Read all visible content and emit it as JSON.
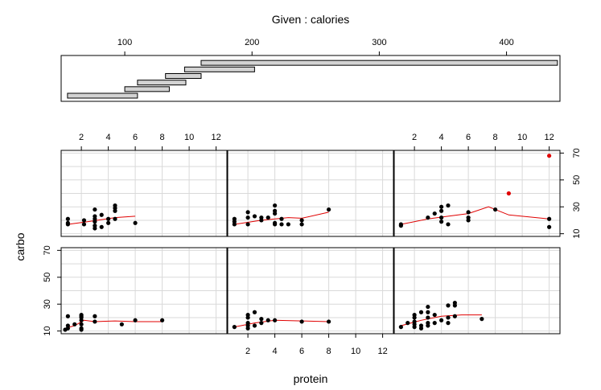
{
  "chart_data": {
    "type": "scatter",
    "title": "Given : calories",
    "xlabel": "protein",
    "ylabel": "carbo",
    "given": {
      "variable": "calories",
      "xlim": [
        50,
        442
      ],
      "ticks": [
        100,
        200,
        300,
        400
      ],
      "intervals": [
        [
          55,
          110
        ],
        [
          100,
          135
        ],
        [
          110,
          148
        ],
        [
          132,
          160
        ],
        [
          147,
          202
        ],
        [
          160,
          440
        ]
      ]
    },
    "xlim": [
      0.5,
      12.8
    ],
    "ylim": [
      8,
      72
    ],
    "xticks": [
      2,
      4,
      6,
      8,
      10,
      12
    ],
    "yticks": [
      10,
      30,
      50,
      70
    ],
    "grid": true,
    "smoother_color": "#e00000",
    "highlight_color": "#e00000",
    "panels": [
      {
        "row": "top",
        "col": 1,
        "points": [
          [
            1,
            18
          ],
          [
            1,
            21
          ],
          [
            1,
            17
          ],
          [
            2.2,
            17
          ],
          [
            2.2,
            20
          ],
          [
            3,
            21
          ],
          [
            3,
            19
          ],
          [
            3,
            23
          ],
          [
            3,
            28
          ],
          [
            3,
            16
          ],
          [
            3,
            14
          ],
          [
            3.5,
            24
          ],
          [
            3.5,
            15
          ],
          [
            4,
            21
          ],
          [
            4,
            18
          ],
          [
            4.5,
            31
          ],
          [
            4.5,
            27
          ],
          [
            4.5,
            21
          ],
          [
            4.5,
            29
          ],
          [
            6,
            18
          ]
        ],
        "highlight": [],
        "smooth": [
          [
            1,
            17
          ],
          [
            2.5,
            19
          ],
          [
            3.5,
            20.5
          ],
          [
            4.5,
            22
          ],
          [
            6,
            23
          ]
        ]
      },
      {
        "row": "top",
        "col": 2,
        "points": [
          [
            1,
            19
          ],
          [
            1,
            17
          ],
          [
            1,
            21
          ],
          [
            2,
            17
          ],
          [
            2,
            22
          ],
          [
            2,
            26
          ],
          [
            2.5,
            23
          ],
          [
            3,
            20
          ],
          [
            3,
            22
          ],
          [
            3.5,
            22
          ],
          [
            4,
            18
          ],
          [
            4,
            17
          ],
          [
            4,
            31
          ],
          [
            4,
            25
          ],
          [
            4,
            27
          ],
          [
            4.5,
            17
          ],
          [
            4.5,
            21
          ],
          [
            5,
            17
          ],
          [
            6,
            17
          ],
          [
            6,
            20
          ],
          [
            8,
            28
          ]
        ],
        "highlight": [],
        "smooth": [
          [
            1,
            17
          ],
          [
            3,
            20
          ],
          [
            5,
            22
          ],
          [
            6,
            21.5
          ],
          [
            8,
            26
          ]
        ]
      },
      {
        "row": "top",
        "col": 3,
        "points": [
          [
            1,
            17
          ],
          [
            1,
            16
          ],
          [
            3,
            22
          ],
          [
            3.5,
            25
          ],
          [
            4,
            27
          ],
          [
            4,
            22
          ],
          [
            4,
            30
          ],
          [
            4,
            19
          ],
          [
            4.5,
            17
          ],
          [
            4.5,
            31
          ],
          [
            6,
            22
          ],
          [
            6,
            26
          ],
          [
            6,
            20
          ],
          [
            8,
            28
          ],
          [
            12,
            21
          ],
          [
            12,
            15
          ]
        ],
        "highlight": [
          [
            9,
            40
          ],
          [
            12,
            68
          ]
        ],
        "smooth": [
          [
            1,
            17
          ],
          [
            3,
            21
          ],
          [
            4.5,
            23
          ],
          [
            6,
            25
          ],
          [
            7.5,
            30
          ],
          [
            9,
            24
          ],
          [
            12,
            21
          ]
        ]
      },
      {
        "row": "bottom",
        "col": 1,
        "points": [
          [
            0.8,
            11
          ],
          [
            1,
            21
          ],
          [
            1,
            12
          ],
          [
            1,
            14
          ],
          [
            1.5,
            15
          ],
          [
            2,
            15
          ],
          [
            2,
            12
          ],
          [
            2,
            11
          ],
          [
            2,
            20
          ],
          [
            2,
            21
          ],
          [
            2,
            22
          ],
          [
            2,
            18
          ],
          [
            3,
            21
          ],
          [
            3,
            17
          ],
          [
            5,
            15
          ],
          [
            6,
            18
          ],
          [
            8,
            18
          ]
        ],
        "highlight": [],
        "smooth": [
          [
            0.8,
            12
          ],
          [
            1.5,
            14
          ],
          [
            2.2,
            18
          ],
          [
            3,
            17
          ],
          [
            4.5,
            17.5
          ],
          [
            6,
            17
          ],
          [
            8,
            17
          ]
        ]
      },
      {
        "row": "bottom",
        "col": 2,
        "points": [
          [
            1,
            13
          ],
          [
            2,
            12
          ],
          [
            2,
            14
          ],
          [
            2,
            16
          ],
          [
            2,
            20
          ],
          [
            2,
            22
          ],
          [
            2.5,
            14
          ],
          [
            2.5,
            24
          ],
          [
            3,
            16
          ],
          [
            3,
            19
          ],
          [
            3.5,
            18
          ],
          [
            4,
            18
          ],
          [
            6,
            17
          ],
          [
            8,
            17
          ]
        ],
        "highlight": [],
        "smooth": [
          [
            1,
            13
          ],
          [
            2.5,
            16
          ],
          [
            4,
            18
          ],
          [
            6,
            17.5
          ],
          [
            8,
            17
          ]
        ]
      },
      {
        "row": "bottom",
        "col": 3,
        "points": [
          [
            1,
            13
          ],
          [
            1.5,
            16
          ],
          [
            2,
            13
          ],
          [
            2,
            15
          ],
          [
            2,
            17
          ],
          [
            2,
            20
          ],
          [
            2,
            22
          ],
          [
            2.5,
            12
          ],
          [
            2.5,
            14
          ],
          [
            2.5,
            24
          ],
          [
            3,
            14
          ],
          [
            3,
            16
          ],
          [
            3,
            20
          ],
          [
            3,
            24
          ],
          [
            3,
            28
          ],
          [
            3.5,
            16
          ],
          [
            3.5,
            22
          ],
          [
            4,
            18
          ],
          [
            4.5,
            16
          ],
          [
            4.5,
            20
          ],
          [
            4.5,
            29
          ],
          [
            5,
            21
          ],
          [
            5,
            31
          ],
          [
            5,
            29
          ],
          [
            7,
            19
          ]
        ],
        "highlight": [],
        "smooth": [
          [
            1,
            14
          ],
          [
            2.5,
            18
          ],
          [
            4,
            21
          ],
          [
            5.5,
            22
          ],
          [
            7,
            22
          ]
        ]
      }
    ]
  }
}
